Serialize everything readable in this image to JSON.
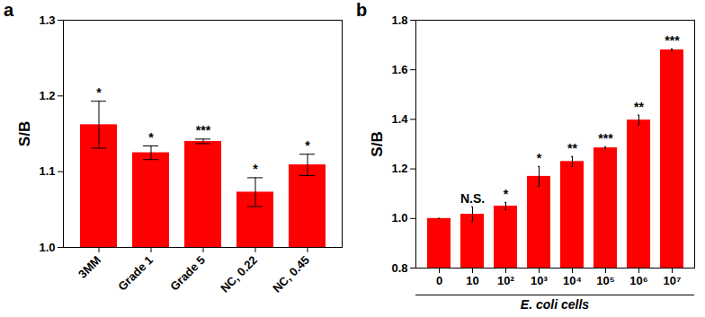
{
  "chart_data": [
    {
      "type": "bar",
      "title": "a",
      "y_label": "S/B",
      "categories": [
        "3MM",
        "Grade 1",
        "Grade 5",
        "NC, 0.22",
        "NC, 0.45"
      ],
      "values": [
        1.162,
        1.125,
        1.14,
        1.073,
        1.109
      ],
      "errors": [
        0.031,
        0.009,
        0.003,
        0.019,
        0.014
      ],
      "significance": [
        "*",
        "*",
        "***",
        "*",
        "*"
      ],
      "color": "#ff0000",
      "ylim": [
        1.0,
        1.3
      ],
      "yticks": [
        {
          "value": 1.0,
          "label": "1.0"
        },
        {
          "value": 1.1,
          "label": "1.1"
        },
        {
          "value": 1.2,
          "label": "1.2"
        },
        {
          "value": 1.3,
          "label": "1.3"
        }
      ]
    },
    {
      "type": "bar",
      "title": "b",
      "y_label": "S/B",
      "x_label": "E. coli cells",
      "categories": [
        "0",
        "10",
        "10²",
        "10³",
        "10⁴",
        "10⁵",
        "10⁶",
        "10⁷"
      ],
      "values": [
        1.0,
        1.017,
        1.05,
        1.17,
        1.23,
        1.285,
        1.397,
        1.68
      ],
      "errors": [
        0.0,
        0.03,
        0.015,
        0.04,
        0.02,
        0.004,
        0.02,
        0.004
      ],
      "significance": [
        null,
        "N.S.",
        "*",
        "*",
        "**",
        "***",
        "**",
        "***"
      ],
      "color": "#ff0000",
      "ylim": [
        0.8,
        1.8
      ],
      "yticks": [
        {
          "value": 0.8,
          "label": "0.8"
        },
        {
          "value": 1.0,
          "label": "1.0"
        },
        {
          "value": 1.2,
          "label": "1.2"
        },
        {
          "value": 1.4,
          "label": "1.4"
        },
        {
          "value": 1.6,
          "label": "1.6"
        },
        {
          "value": 1.8,
          "label": "1.8"
        }
      ]
    }
  ]
}
